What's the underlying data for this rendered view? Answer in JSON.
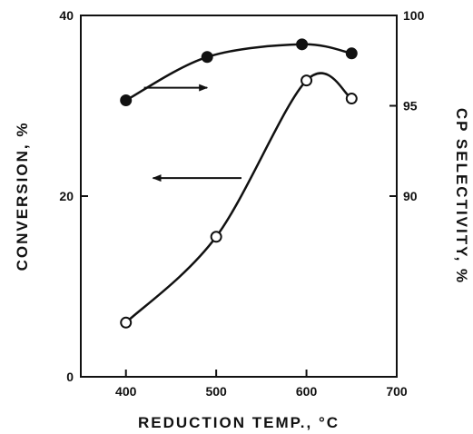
{
  "chart_data": {
    "type": "line",
    "title": "",
    "xlabel": "REDUCTION TEMP., °C",
    "ylabel_left": "CONVERSION, %",
    "ylabel_right": "CP SELECTIVITY, %",
    "xlim": [
      350,
      700
    ],
    "ylim_left": [
      0,
      40
    ],
    "ylim_right": [
      80,
      100
    ],
    "x_ticks": [
      "400",
      "500",
      "600",
      "700"
    ],
    "y_left_ticks": [
      "0",
      "20",
      "40"
    ],
    "y_right_ticks": [
      "90",
      "95",
      "100"
    ],
    "grid": false,
    "series": [
      {
        "axis": "left",
        "marker": "open-circle",
        "x": [
          400,
          500,
          600,
          650
        ],
        "y": [
          6,
          15.5,
          32.8,
          30.8
        ]
      },
      {
        "axis": "right",
        "marker": "filled-circle",
        "x": [
          400,
          490,
          595,
          650
        ],
        "y": [
          95.3,
          97.7,
          98.4,
          97.9
        ]
      }
    ],
    "annotations": [
      {
        "type": "arrow",
        "direction": "right",
        "points_to_axis": "right"
      },
      {
        "type": "arrow",
        "direction": "left",
        "points_to_axis": "left"
      }
    ],
    "colors": {
      "ink": "#111111",
      "background": "#ffffff"
    }
  }
}
